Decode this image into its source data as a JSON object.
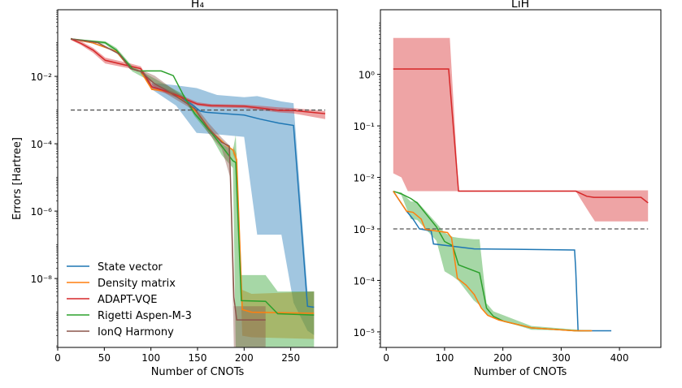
{
  "chart_data": [
    {
      "type": "line",
      "title": "H₄",
      "xlabel": "Number of CNOTs",
      "ylabel": "Errors [Hartree]",
      "xlim": [
        0,
        300
      ],
      "ylim": [
        9e-11,
        0.95
      ],
      "yscale": "log",
      "x_ticks": [
        0,
        50,
        100,
        150,
        200,
        250
      ],
      "x_tick_labels": [
        "0",
        "50",
        "100",
        "150",
        "200",
        "250"
      ],
      "y_ticks": [
        0.01,
        0.0001,
        1e-06,
        1e-08
      ],
      "y_tick_labels": [
        "10⁻²",
        "10⁻⁴",
        "10⁻⁶",
        "10⁻⁸"
      ],
      "grid": false,
      "legend": "lower-left",
      "reference_line": {
        "y": 0.001,
        "x": [
          14,
          287
        ],
        "style": "dashed",
        "color": "#555555"
      },
      "series": [
        {
          "name": "State vector",
          "color": "#1f77b4",
          "x": [
            14,
            37,
            63,
            78,
            89,
            101,
            115,
            130,
            142,
            153,
            159,
            200,
            217,
            237,
            253,
            268,
            275
          ],
          "y": [
            0.13,
            0.1,
            0.055,
            0.017,
            0.014,
            0.0049,
            0.0037,
            0.0024,
            0.0016,
            0.00093,
            0.00086,
            0.00071,
            0.00054,
            0.00041,
            0.00035,
            1.5e-09,
            1.4e-09
          ],
          "band": {
            "x": [
              101,
              127,
              149,
              171,
              200,
              214,
              240,
              253,
              268,
              275
            ],
            "lower": [
              0.0041,
              0.00135,
              0.00021,
              0.00019,
              0.00016,
              2e-07,
              2e-07,
              1.9e-09,
              2.8e-10,
              2.1e-10
            ],
            "upper": [
              0.0065,
              0.0054,
              0.0045,
              0.0028,
              0.0024,
              0.0026,
              0.0018,
              0.0016,
              4.1e-09,
              4.1e-09
            ]
          }
        },
        {
          "name": "Density matrix",
          "color": "#ff7f0e",
          "x": [
            14,
            37,
            63,
            78,
            89,
            101,
            115,
            130,
            142,
            153,
            165,
            179,
            188,
            192,
            198,
            208,
            275
          ],
          "y": [
            0.13,
            0.1,
            0.055,
            0.017,
            0.014,
            0.0041,
            0.0037,
            0.0024,
            0.00135,
            0.00065,
            0.00023,
            0.0001,
            6.5e-05,
            3.4e-05,
            1.2e-09,
            1e-09,
            9.3e-10
          ],
          "band": {
            "x": [
              188,
              192,
              198,
              208,
              275
            ],
            "lower": [
              5e-05,
              2.5e-05,
              2e-10,
              1.8e-10,
              1.6e-10
            ],
            "upper": [
              8.5e-05,
              5e-05,
              4.6e-09,
              3.5e-09,
              4.1e-09
            ]
          }
        },
        {
          "name": "ADAPT-VQE",
          "color": "#d62728",
          "x": [
            14,
            25,
            38,
            51,
            78,
            89,
            101,
            115,
            127,
            139,
            150,
            165,
            200,
            223,
            237,
            252,
            287
          ],
          "y": [
            0.13,
            0.095,
            0.06,
            0.03,
            0.02,
            0.017,
            0.0049,
            0.0037,
            0.0028,
            0.002,
            0.0015,
            0.00135,
            0.0013,
            0.0011,
            0.00098,
            0.00098,
            0.00078
          ],
          "band": {
            "x": [
              14,
              25,
              38,
              51,
              78,
              89,
              101,
              115,
              127,
              139,
              150,
              165,
              200,
              223,
              237,
              252,
              287
            ],
            "lower": [
              0.12,
              0.085,
              0.05,
              0.024,
              0.017,
              0.014,
              0.0041,
              0.0032,
              0.0024,
              0.0018,
              0.00135,
              0.0012,
              0.00115,
              0.00095,
              0.00085,
              0.0008,
              0.00054
            ],
            "upper": [
              0.14,
              0.11,
              0.07,
              0.036,
              0.024,
              0.02,
              0.006,
              0.0043,
              0.0032,
              0.0023,
              0.0017,
              0.0015,
              0.00145,
              0.0013,
              0.0012,
              0.00115,
              0.00093
            ]
          }
        },
        {
          "name": "Rigetti Aspen-M-3",
          "color": "#2ca02c",
          "x": [
            14,
            51,
            63,
            80,
            86,
            111,
            124,
            136,
            147,
            165,
            176,
            188,
            191,
            197,
            223,
            236,
            275
          ],
          "y": [
            0.13,
            0.1,
            0.06,
            0.017,
            0.0145,
            0.0145,
            0.0105,
            0.0024,
            0.00078,
            0.00021,
            8.5e-05,
            3.1e-05,
            2.8e-05,
            2.2e-09,
            2.1e-09,
            9e-10,
            8.2e-10
          ],
          "band": {
            "x": [
              14,
              51,
              63,
              80,
              136,
              147,
              165,
              176,
              188,
              191,
              197,
              223,
              236,
              275
            ],
            "lower": [
              0.13,
              0.09,
              0.05,
              0.014,
              0.002,
              0.00065,
              0.00016,
              4.6e-05,
              1.9e-05,
              9.3e-11,
              9.3e-11,
              9.3e-11,
              9.3e-11,
              9.3e-11
            ],
            "upper": [
              0.13,
              0.11,
              0.07,
              0.02,
              0.0028,
              0.00093,
              0.00026,
              0.0001,
              6.5e-05,
              0.00018,
              1.26e-08,
              1.26e-08,
              4.1e-09,
              4.1e-09
            ]
          }
        },
        {
          "name": "IonQ Harmony",
          "color": "#8c564b",
          "x": [
            14,
            43,
            66,
            78,
            89,
            104,
            115,
            133,
            147,
            162,
            176,
            184,
            185,
            189,
            192,
            223
          ],
          "y": [
            0.13,
            0.1,
            0.046,
            0.017,
            0.014,
            0.006,
            0.0041,
            0.002,
            0.0011,
            0.00028,
            0.00011,
            8.5e-05,
            1.9e-05,
            2.8e-09,
            5.9e-10,
            5.9e-10
          ],
          "band": {
            "x": [
              89,
              104,
              147,
              162,
              176,
              185,
              189,
              192,
              223
            ],
            "lower": [
              0.012,
              0.0049,
              0.00095,
              0.0002,
              7e-05,
              1e-05,
              9.3e-11,
              9.3e-11,
              9.3e-11
            ],
            "upper": [
              0.016,
              0.0105,
              0.0014,
              0.00041,
              0.00015,
              8.5e-05,
              1.5e-09,
              1.5e-09,
              1.5e-09
            ]
          }
        }
      ]
    },
    {
      "type": "line",
      "title": "LiH",
      "xlabel": "Number of CNOTs",
      "ylabel": "",
      "xlim": [
        -10,
        471
      ],
      "ylim": [
        5e-06,
        18
      ],
      "yscale": "log",
      "x_ticks": [
        0,
        100,
        200,
        300,
        400
      ],
      "x_tick_labels": [
        "0",
        "100",
        "200",
        "300",
        "400"
      ],
      "y_ticks": [
        1,
        0.1,
        0.01,
        0.001,
        0.0001,
        1e-05
      ],
      "y_tick_labels": [
        "10⁰",
        "10⁻¹",
        "10⁻²",
        "10⁻³",
        "10⁻⁴",
        "10⁻⁵"
      ],
      "grid": false,
      "reference_line": {
        "y": 0.001,
        "x": [
          12,
          449
        ],
        "style": "dashed",
        "color": "#555555"
      },
      "series": [
        {
          "name": "ADAPT-VQE",
          "color": "#d62728",
          "x": [
            12,
            107,
            124,
            325,
            344,
            356,
            437,
            449
          ],
          "y": [
            1.27,
            1.27,
            0.0054,
            0.0054,
            0.0043,
            0.0041,
            0.0041,
            0.0032
          ],
          "band": {
            "x": [
              12,
              26,
              37,
              109,
              124,
              325,
              349,
              358,
              449
            ],
            "lower": [
              0.012,
              0.01,
              0.0054,
              0.0054,
              0.0054,
              0.0054,
              0.002,
              0.0014,
              0.0014
            ],
            "upper": [
              5.1,
              5.1,
              5.1,
              5.1,
              0.0056,
              0.0056,
              0.0056,
              0.0056,
              0.0056
            ]
          }
        },
        {
          "name": "State vector",
          "color": "#1f77b4",
          "x": [
            12,
            35,
            46,
            57,
            77,
            81,
            151,
            323,
            325,
            329,
            386
          ],
          "y": [
            0.0054,
            0.0022,
            0.00155,
            0.001,
            0.00091,
            0.00051,
            0.00041,
            0.00039,
            0.00016,
            1.05e-05,
            1.05e-05
          ]
        },
        {
          "name": "Rigetti Aspen-M-3",
          "color": "#2ca02c",
          "x": [
            12,
            26,
            42,
            53,
            86,
            100,
            114,
            124,
            160,
            172,
            184,
            202,
            249,
            323,
            351
          ],
          "y": [
            0.0054,
            0.0048,
            0.0039,
            0.0032,
            0.0011,
            0.00057,
            0.00047,
            0.0002,
            0.00014,
            2.9e-05,
            2e-05,
            1.6e-05,
            1.2e-05,
            1.05e-05,
            1.05e-05
          ],
          "band": {
            "x": [
              12,
              26,
              42,
              53,
              86,
              100,
              114,
              124,
              150,
              160,
              172,
              184,
              249,
              351
            ],
            "lower": [
              0.0054,
              0.0045,
              0.00155,
              0.0015,
              0.00059,
              0.00015,
              0.00012,
              9.8e-05,
              4.1e-05,
              3.3e-05,
              2.2e-05,
              1.9e-05,
              1.1e-05,
              1.05e-05
            ],
            "upper": [
              0.0054,
              0.0051,
              0.0034,
              0.0034,
              0.0013,
              0.00085,
              0.0007,
              0.00067,
              0.00063,
              0.00063,
              3.6e-05,
              2.5e-05,
              1.3e-05,
              1.05e-05
            ]
          }
        },
        {
          "name": "Density matrix",
          "color": "#ff7f0e",
          "x": [
            12,
            35,
            46,
            60,
            67,
            105,
            112,
            122,
            137,
            151,
            163,
            174,
            193,
            249,
            323,
            353
          ],
          "y": [
            0.0054,
            0.0022,
            0.0021,
            0.00155,
            0.00098,
            0.00085,
            0.00067,
            0.00011,
            8.1e-05,
            5.3e-05,
            2.9e-05,
            2.1e-05,
            1.7e-05,
            1.2e-05,
            1.05e-05,
            1.05e-05
          ]
        }
      ]
    }
  ]
}
